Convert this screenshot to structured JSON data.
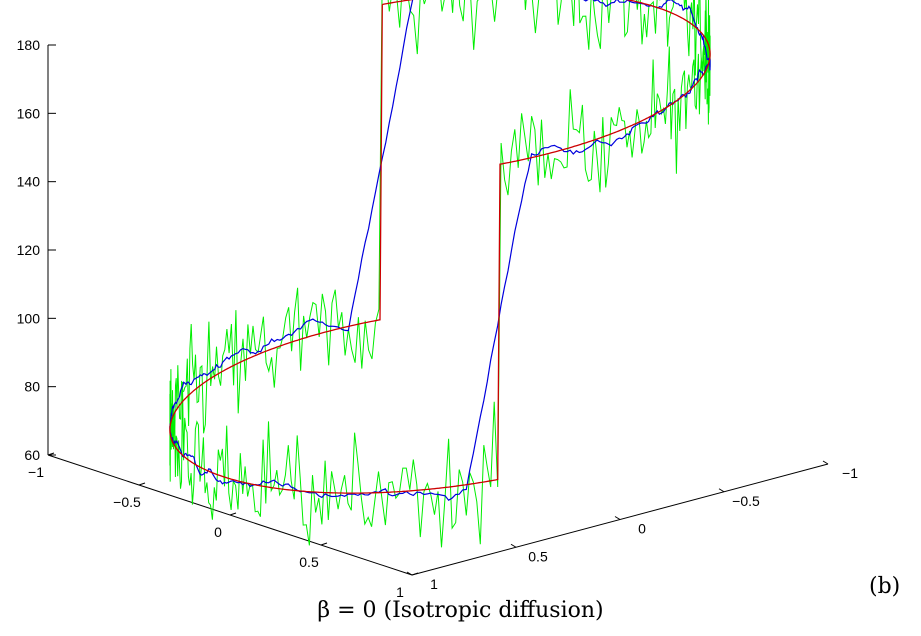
{
  "caption": "β = 0 (Isotropic diffusion)",
  "panel_label": "(b)",
  "chart_data": {
    "type": "line3d",
    "title": "",
    "zlim": [
      60,
      180
    ],
    "z_ticks": [
      "60",
      "80",
      "100",
      "120",
      "140",
      "160",
      "180"
    ],
    "x_ticks": [
      "−1",
      "−0.5",
      "0",
      "0.5",
      "1"
    ],
    "y_ticks": [
      "1",
      "0.5",
      "0",
      "−0.5",
      "−1"
    ],
    "grid": false,
    "series": [
      {
        "color": "#00ee00",
        "role": "noisy"
      },
      {
        "color": "#0000dd",
        "role": "smoothed"
      },
      {
        "color": "#cc0000",
        "role": "clean"
      }
    ],
    "curve": {
      "shape": "unit-circle",
      "high_value": 170,
      "low_value": 76,
      "transition_angles_deg": [
        80,
        260
      ]
    }
  }
}
